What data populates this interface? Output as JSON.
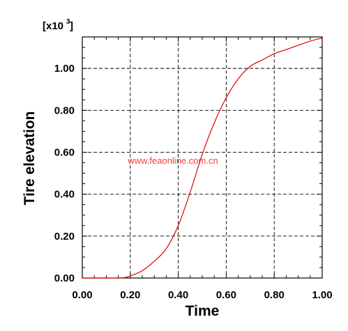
{
  "chart_data": {
    "type": "line",
    "title": "",
    "xlabel": "Time",
    "ylabel": "Tire elevation",
    "y_multiplier_label_prefix": "[x10",
    "y_multiplier_label_exp": "3",
    "y_multiplier_label_suffix": "]",
    "watermark": "www.feaonline.com.cn",
    "xlim": [
      0,
      1
    ],
    "ylim": [
      0,
      1.15
    ],
    "grid": true,
    "grid_style": "dashed",
    "series_color": "#e00000",
    "watermark_color": "#ff3b3b",
    "x_ticks": [
      {
        "value": 0.0,
        "label": "0.00"
      },
      {
        "value": 0.2,
        "label": "0.20"
      },
      {
        "value": 0.4,
        "label": "0.40"
      },
      {
        "value": 0.6,
        "label": "0.60"
      },
      {
        "value": 0.8,
        "label": "0.80"
      },
      {
        "value": 1.0,
        "label": "1.00"
      }
    ],
    "y_ticks": [
      {
        "value": 0.0,
        "label": "0.00"
      },
      {
        "value": 0.2,
        "label": "0.20"
      },
      {
        "value": 0.4,
        "label": "0.40"
      },
      {
        "value": 0.6,
        "label": "0.60"
      },
      {
        "value": 0.8,
        "label": "0.80"
      },
      {
        "value": 1.0,
        "label": "1.00"
      }
    ],
    "series": [
      {
        "x": [
          0.0,
          0.05,
          0.1,
          0.15,
          0.18,
          0.2,
          0.25,
          0.3,
          0.35,
          0.4,
          0.45,
          0.5,
          0.55,
          0.6,
          0.65,
          0.7,
          0.75,
          0.8,
          0.85,
          0.9,
          0.95,
          1.0
        ],
        "y": [
          0.0,
          0.0,
          0.0,
          0.0,
          0.003,
          0.01,
          0.035,
          0.08,
          0.14,
          0.25,
          0.41,
          0.59,
          0.74,
          0.86,
          0.95,
          1.01,
          1.04,
          1.07,
          1.09,
          1.11,
          1.13,
          1.145
        ]
      }
    ]
  }
}
